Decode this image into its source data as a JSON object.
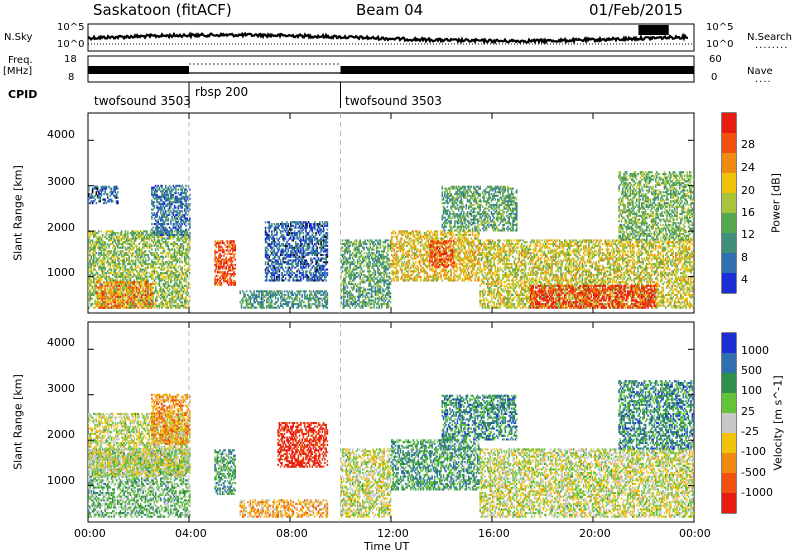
{
  "header": {
    "station": "Saskatoon (fitACF)",
    "beam": "Beam 04",
    "date": "01/Feb/2015"
  },
  "top_panels": {
    "nsky_label": "N.Sky",
    "nsearch_label": "N.Search",
    "freq_label_line1": "Freq.",
    "freq_label_line2": "[MHz]",
    "nave_label": "Nave",
    "cpid_label": "CPID",
    "noise_left_ticks": [
      "10^5",
      "10^0"
    ],
    "noise_right_ticks": [
      "10^5",
      "10^0"
    ],
    "freq_left_ticks": [
      "18",
      "8"
    ],
    "nave_right_ticks": [
      "60",
      "0"
    ],
    "cpid_segments": [
      {
        "label": "twofsound 3503",
        "start_hour": 0,
        "end_hour": 4
      },
      {
        "label": "rbsp 200",
        "start_hour": 4,
        "end_hour": 10
      },
      {
        "label": "twofsound 3503",
        "start_hour": 10,
        "end_hour": 24
      }
    ]
  },
  "x_axis": {
    "label": "Time UT",
    "ticks": [
      "00:00",
      "04:00",
      "08:00",
      "12:00",
      "16:00",
      "20:00",
      "00:00"
    ],
    "tick_hours": [
      0,
      4,
      8,
      12,
      16,
      20,
      24
    ]
  },
  "colors": {
    "power": [
      "#1a2fd6",
      "#2f6fb0",
      "#3f8f7a",
      "#55a84f",
      "#a8c43a",
      "#f0c20a",
      "#f08a10",
      "#f05010",
      "#e61c10"
    ],
    "velocity": [
      "#1a2fd6",
      "#2f6fb0",
      "#2f8f4a",
      "#63c43a",
      "#c8c8c8",
      "#f0c20a",
      "#f08a10",
      "#f05010",
      "#e61c10"
    ]
  },
  "chart_data": [
    {
      "type": "heatmap",
      "title": "Power",
      "ylabel": "Slant Range [km]",
      "xlabel": "",
      "ylim": [
        200,
        4600
      ],
      "yticks": [
        1000,
        2000,
        3000,
        4000
      ],
      "colorbar_label": "Power [dB]",
      "colorbar_ticks": [
        "28",
        "24",
        "20",
        "16",
        "12",
        "8",
        "4"
      ],
      "colorbar_range": [
        0,
        32
      ],
      "regions": [
        {
          "t0": 0.0,
          "t1": 4.0,
          "r0": 300,
          "r1": 2000,
          "level": 0.45
        },
        {
          "t0": 0.3,
          "t1": 2.5,
          "r0": 300,
          "r1": 900,
          "level": 0.75
        },
        {
          "t0": 2.5,
          "t1": 4.0,
          "r0": 1900,
          "r1": 3000,
          "level": 0.2
        },
        {
          "t0": 0.0,
          "t1": 1.2,
          "r0": 2600,
          "r1": 3000,
          "level": 0.15
        },
        {
          "t0": 5.0,
          "t1": 5.8,
          "r0": 800,
          "r1": 1800,
          "level": 0.85
        },
        {
          "t0": 6.0,
          "t1": 9.5,
          "r0": 300,
          "r1": 700,
          "level": 0.3
        },
        {
          "t0": 7.0,
          "t1": 9.5,
          "r0": 900,
          "r1": 2200,
          "level": 0.15
        },
        {
          "t0": 10.0,
          "t1": 12.0,
          "r0": 300,
          "r1": 1800,
          "level": 0.35
        },
        {
          "t0": 12.0,
          "t1": 15.5,
          "r0": 900,
          "r1": 2000,
          "level": 0.6
        },
        {
          "t0": 13.5,
          "t1": 14.5,
          "r0": 1200,
          "r1": 1800,
          "level": 0.85
        },
        {
          "t0": 15.5,
          "t1": 24.0,
          "r0": 300,
          "r1": 1800,
          "level": 0.55
        },
        {
          "t0": 17.5,
          "t1": 22.5,
          "r0": 300,
          "r1": 800,
          "level": 0.9
        },
        {
          "t0": 14.0,
          "t1": 17.0,
          "r0": 2000,
          "r1": 3000,
          "level": 0.35
        },
        {
          "t0": 21.0,
          "t1": 24.0,
          "r0": 1800,
          "r1": 3300,
          "level": 0.4
        }
      ]
    },
    {
      "type": "heatmap",
      "title": "Velocity",
      "ylabel": "Slant Range [km]",
      "xlabel": "Time UT",
      "ylim": [
        200,
        4600
      ],
      "yticks": [
        1000,
        2000,
        3000,
        4000
      ],
      "colorbar_label": "Velocity [m s^-1]",
      "colorbar_ticks": [
        "1000",
        "500",
        "100",
        "25",
        "-25",
        "-100",
        "-500",
        "-1000"
      ],
      "regions": [
        {
          "t0": 0.0,
          "t1": 4.0,
          "r0": 300,
          "r1": 1800,
          "level": 0.62
        },
        {
          "t0": 0.0,
          "t1": 4.0,
          "r0": 1200,
          "r1": 2600,
          "level": 0.5
        },
        {
          "t0": 2.5,
          "t1": 4.0,
          "r0": 1900,
          "r1": 3000,
          "level": 0.3
        },
        {
          "t0": 5.0,
          "t1": 5.8,
          "r0": 800,
          "r1": 1800,
          "level": 0.7
        },
        {
          "t0": 6.0,
          "t1": 9.5,
          "r0": 300,
          "r1": 700,
          "level": 0.35
        },
        {
          "t0": 7.5,
          "t1": 9.5,
          "r0": 1400,
          "r1": 2400,
          "level": 0.05
        },
        {
          "t0": 10.0,
          "t1": 12.0,
          "r0": 300,
          "r1": 1800,
          "level": 0.5
        },
        {
          "t0": 12.0,
          "t1": 15.5,
          "r0": 900,
          "r1": 2000,
          "level": 0.7
        },
        {
          "t0": 15.5,
          "t1": 24.0,
          "r0": 300,
          "r1": 1800,
          "level": 0.5
        },
        {
          "t0": 14.0,
          "t1": 17.0,
          "r0": 2000,
          "r1": 3000,
          "level": 0.75
        },
        {
          "t0": 21.0,
          "t1": 24.0,
          "r0": 1800,
          "r1": 3300,
          "level": 0.75
        }
      ]
    }
  ]
}
